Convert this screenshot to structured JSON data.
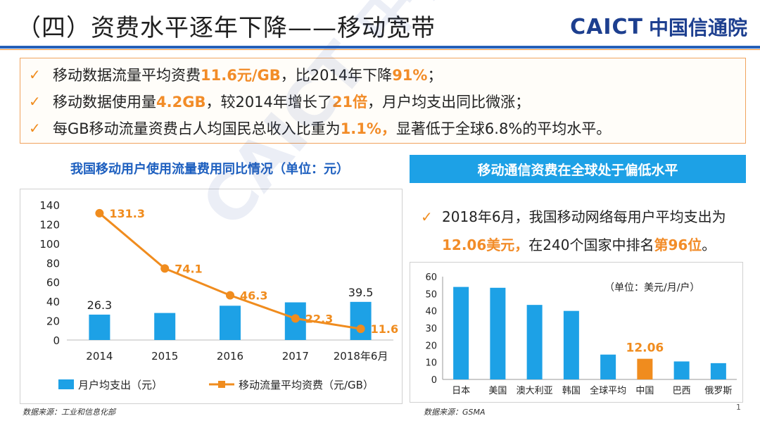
{
  "header": {
    "title": "（四）资费水平逐年下降——移动宽带",
    "logo_en": "CAICT",
    "logo_cn": "中国信通院"
  },
  "bullets": [
    {
      "parts": [
        {
          "t": "移动数据流量平均资费",
          "h": false
        },
        {
          "t": "11.6元/GB",
          "h": true
        },
        {
          "t": "，比2014年下降",
          "h": false
        },
        {
          "t": "91%",
          "h": true
        },
        {
          "t": "；",
          "h": false
        }
      ]
    },
    {
      "parts": [
        {
          "t": "移动数据使用量",
          "h": false
        },
        {
          "t": "4.2GB",
          "h": true
        },
        {
          "t": "，较2014年增长了",
          "h": false
        },
        {
          "t": "21倍",
          "h": true
        },
        {
          "t": "，月户均支出同比微涨；",
          "h": false
        }
      ]
    },
    {
      "parts": [
        {
          "t": "每GB移动流量资费占人均国民总收入比重为",
          "h": false
        },
        {
          "t": "1.1%，",
          "h": true
        },
        {
          "t": "显著低于全球6.8%的平均水平。",
          "h": false
        }
      ]
    }
  ],
  "left_panel": {
    "title": "我国移动用户使用流量费用同比情况（单位：元）",
    "source": "数据来源：工业和信息化部"
  },
  "right_panel": {
    "banner": "移动通信资费在全球处于偏低水平",
    "text_line1": "2018年6月，我国移动网络每用户平均支出为",
    "text_line2_parts": [
      {
        "t": "12.06美元，",
        "h": true
      },
      {
        "t": "在240个国家中排名",
        "h": false
      },
      {
        "t": "第96位",
        "h": true
      },
      {
        "t": "。",
        "h": false
      }
    ],
    "source": "数据来源：GSMA"
  },
  "page_number": "1",
  "colors": {
    "bar": "#1da1e6",
    "line": "#f08c1e",
    "accent": "#f28c28",
    "china_bar": "#f08c1e"
  },
  "chart_data": [
    {
      "type": "bar+line",
      "categories": [
        "2014",
        "2015",
        "2016",
        "2017",
        "2018年6月"
      ],
      "series": [
        {
          "name": "月户均支出（元）",
          "kind": "bar",
          "values": [
            26.3,
            28.0,
            35.5,
            39.0,
            39.5
          ],
          "labels": [
            "26.3",
            "",
            "",
            "",
            "39.5"
          ]
        },
        {
          "name": "移动流量平均资费（元/GB）",
          "kind": "line",
          "values": [
            131.3,
            74.1,
            46.3,
            22.3,
            11.6
          ],
          "labels": [
            "131.3",
            "74.1",
            "46.3",
            "22.3",
            "11.6"
          ]
        }
      ],
      "yticks": [
        "0",
        "20",
        "40",
        "60",
        "80",
        "100",
        "120",
        "140"
      ],
      "ylim": [
        0,
        140
      ]
    },
    {
      "type": "bar",
      "unit_label": "（单位：美元/月/户）",
      "categories": [
        "日本",
        "美国",
        "澳大利亚",
        "韩国",
        "全球平均",
        "中国",
        "巴西",
        "俄罗斯"
      ],
      "values": [
        54.0,
        53.5,
        43.5,
        40.0,
        14.5,
        12.06,
        10.5,
        9.5
      ],
      "highlight_index": 5,
      "highlight_label": "12.06",
      "yticks": [
        "0",
        "10",
        "20",
        "30",
        "40",
        "50",
        "60"
      ],
      "ylim": [
        0,
        60
      ]
    }
  ]
}
